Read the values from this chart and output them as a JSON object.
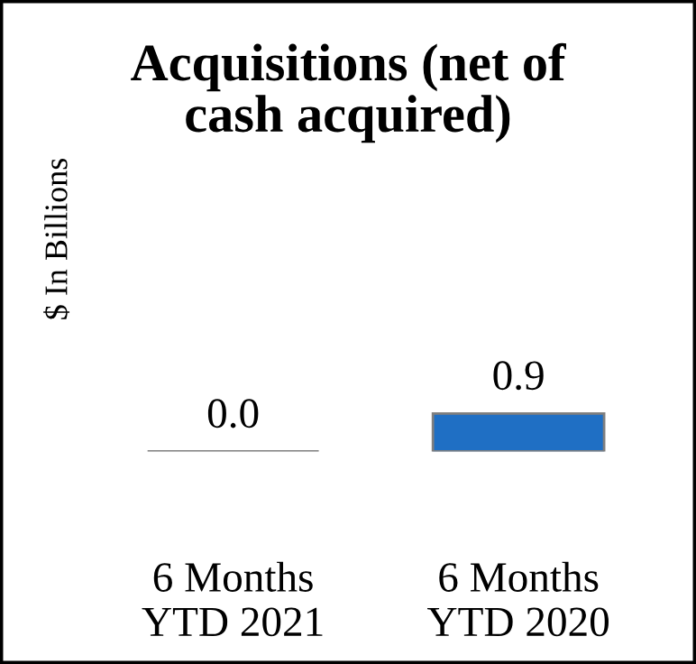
{
  "chart_data": {
    "type": "bar",
    "title": "Acquisitions (net of\ncash acquired)",
    "ylabel": "$ In Billions",
    "categories": [
      "6 Months\nYTD 2021",
      "6 Months\nYTD 2020"
    ],
    "values": [
      0.0,
      0.9
    ],
    "value_labels": [
      "0.0",
      "0.9"
    ],
    "color": "#1f6fc4",
    "grid": false,
    "legend": false
  }
}
